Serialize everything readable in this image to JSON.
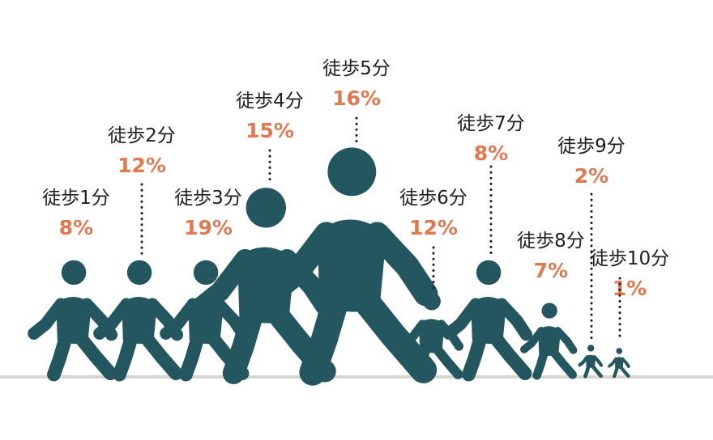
{
  "chart_data": {
    "type": "bar",
    "categories": [
      "徒歩1分",
      "徒歩2分",
      "徒歩3分",
      "徒歩4分",
      "徒歩5分",
      "徒歩6分",
      "徒歩7分",
      "徒歩8分",
      "徒歩9分",
      "徒歩10分"
    ],
    "values": [
      8,
      12,
      19,
      15,
      16,
      12,
      8,
      7,
      2,
      1
    ],
    "value_labels": [
      "8%",
      "12%",
      "19%",
      "15%",
      "16%",
      "12%",
      "8%",
      "7%",
      "2%",
      "1%"
    ],
    "unit": "%",
    "title": "",
    "xlabel": "",
    "ylabel": ""
  },
  "colors": {
    "figure": "#23565f",
    "value_text": "#e07850",
    "label_text": "#1e1e1e",
    "ground": "#d9d4cf"
  },
  "icon": "walking-person-icon"
}
